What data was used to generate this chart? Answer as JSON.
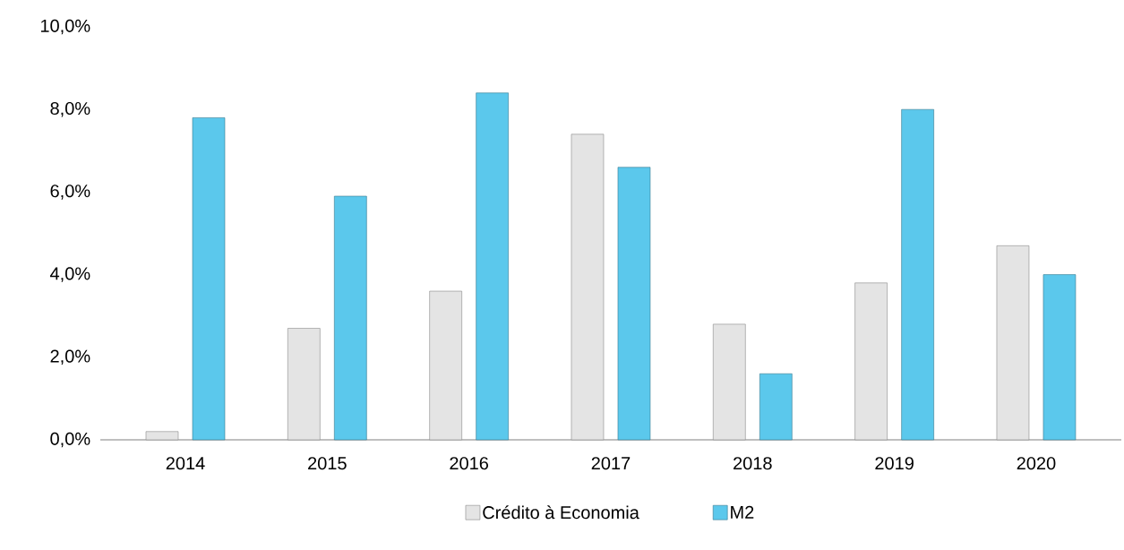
{
  "chart_data": {
    "type": "bar",
    "categories": [
      "2014",
      "2015",
      "2016",
      "2017",
      "2018",
      "2019",
      "2020"
    ],
    "series": [
      {
        "name": "Crédito à Economia",
        "color": "#e4e4e4",
        "values": [
          0.2,
          2.7,
          3.6,
          7.4,
          2.8,
          3.8,
          4.7
        ]
      },
      {
        "name": "M2",
        "color": "#5bc8ec",
        "values": [
          7.8,
          5.9,
          8.4,
          6.6,
          1.6,
          8.0,
          4.0
        ]
      }
    ],
    "ylim": [
      0,
      10
    ],
    "yticks": [
      {
        "value": 0,
        "label": "0,0%"
      },
      {
        "value": 2,
        "label": "2,0%"
      },
      {
        "value": 4,
        "label": "4,0%"
      },
      {
        "value": 6,
        "label": "6,0%"
      },
      {
        "value": 8,
        "label": "8,0%"
      },
      {
        "value": 10,
        "label": "10,0%"
      }
    ],
    "grid": false,
    "legend": "bottom"
  }
}
